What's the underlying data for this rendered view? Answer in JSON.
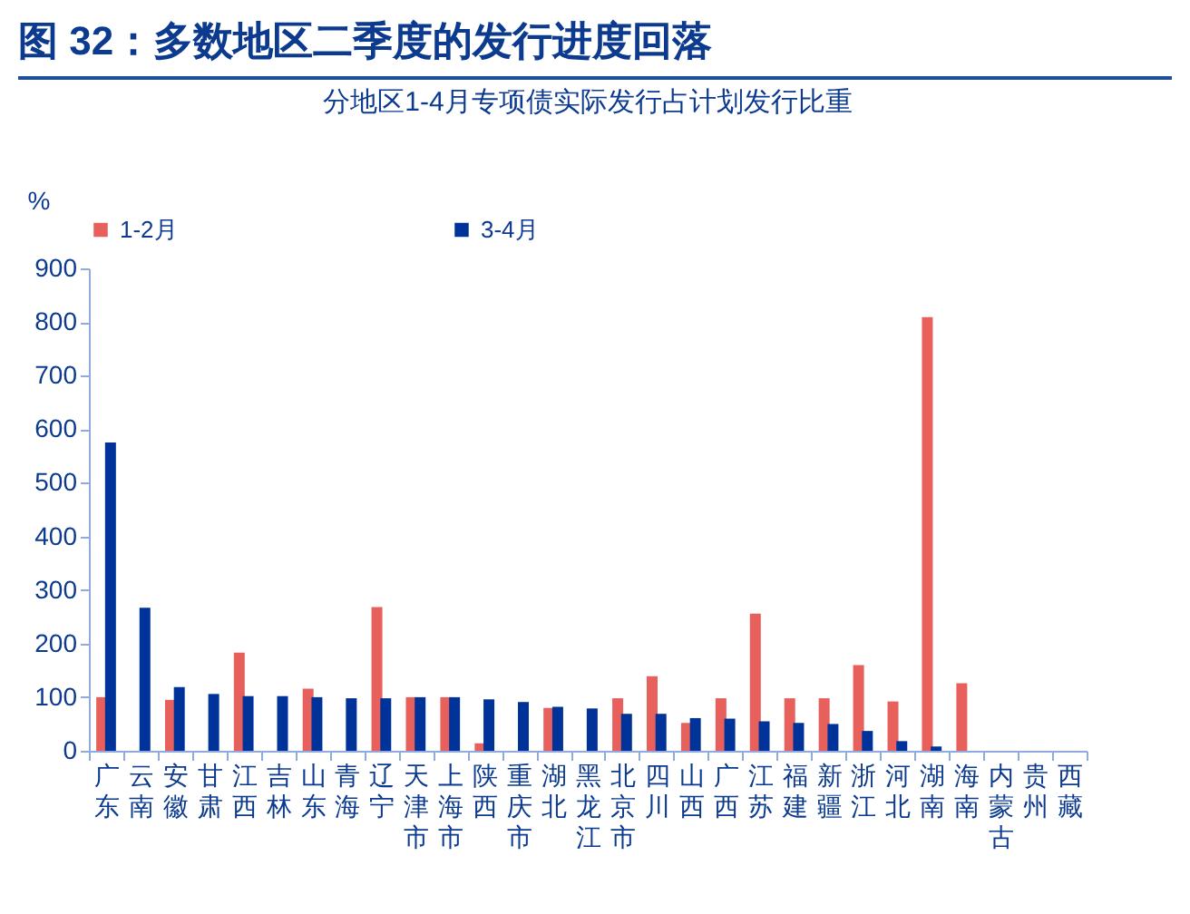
{
  "chart_data": {
    "type": "bar",
    "title": "图 32：多数地区二季度的发行进度回落",
    "subtitle": "分地区1-4月专项债实际发行占计划发行比重",
    "ylabel": "%",
    "categories": [
      "广东",
      "云南",
      "安徽",
      "甘肃",
      "江西",
      "吉林",
      "山东",
      "青海",
      "辽宁",
      "天津市",
      "上海市",
      "陕西",
      "重庆市",
      "湖北",
      "黑龙江",
      "北京市",
      "四川",
      "山西",
      "广西",
      "江苏",
      "福建",
      "新疆",
      "浙江",
      "河北",
      "湖南",
      "海南",
      "内蒙古",
      "贵州",
      "西藏"
    ],
    "series": [
      {
        "name": "1-2月",
        "color": "#e8605c",
        "values": [
          100,
          null,
          95,
          null,
          183,
          null,
          116,
          null,
          268,
          100,
          100,
          14,
          null,
          80,
          null,
          98,
          139,
          52,
          98,
          256,
          98,
          98,
          160,
          92,
          809,
          126,
          null,
          null,
          null
        ]
      },
      {
        "name": "3-4月",
        "color": "#003399",
        "values": [
          575,
          267,
          119,
          106,
          102,
          102,
          100,
          98,
          98,
          100,
          100,
          96,
          91,
          82,
          79,
          69,
          69,
          61,
          60,
          55,
          52,
          50,
          37,
          18,
          8,
          null,
          null,
          null,
          null
        ]
      }
    ],
    "ylim": [
      0,
      900
    ],
    "yticks": [
      0,
      100,
      200,
      300,
      400,
      500,
      600,
      700,
      800,
      900
    ],
    "grid": false,
    "legend": "top"
  }
}
